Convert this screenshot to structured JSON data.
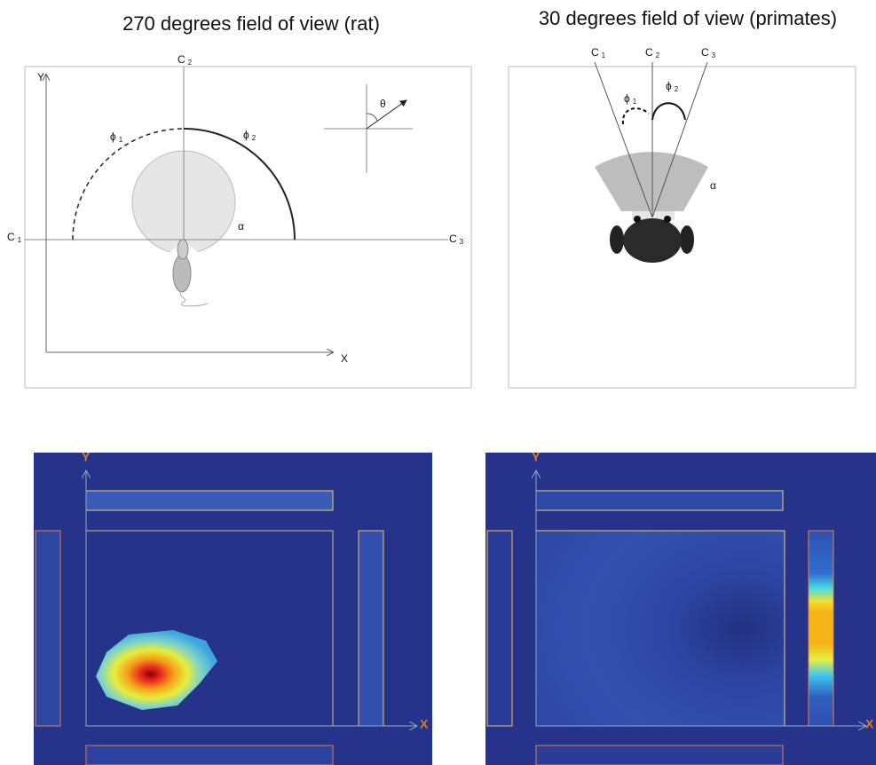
{
  "panels": [
    {
      "title": "270 degrees field of view (rat)",
      "labels": {
        "c1": {
          "base": "C",
          "sub": "1"
        },
        "c2": {
          "base": "C",
          "sub": "2"
        },
        "c3": {
          "base": "C",
          "sub": "3"
        },
        "phi1": {
          "base": "ϕ",
          "sub": "1"
        },
        "phi2": {
          "base": "ϕ",
          "sub": "2"
        },
        "alpha": "α",
        "theta": "θ",
        "y": "Y",
        "x": "X"
      }
    },
    {
      "title": "30 degrees field of view (primates)",
      "labels": {
        "c1": {
          "base": "C",
          "sub": "1"
        },
        "c2": {
          "base": "C",
          "sub": "2"
        },
        "c3": {
          "base": "C",
          "sub": "3"
        },
        "phi1": {
          "base": "ϕ",
          "sub": "1"
        },
        "phi2": {
          "base": "ϕ",
          "sub": "2"
        },
        "alpha": "α"
      }
    },
    {
      "labels": {
        "y": "Y",
        "x": "X"
      }
    },
    {
      "labels": {
        "y": "Y",
        "x": "X"
      }
    }
  ]
}
